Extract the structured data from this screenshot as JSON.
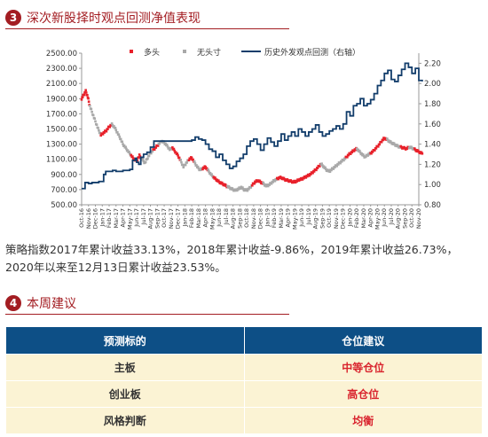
{
  "section3": {
    "number": "3",
    "title": "深次新股择时观点回测净值表现"
  },
  "section4": {
    "number": "4",
    "title": "本周建议"
  },
  "paragraph": "策略指数2017年累计收益33.13%，2018年累计收益-9.86%，2019年累计收益26.73%，2020年以来至12月13日累计收益23.53%。",
  "table": {
    "headers": [
      "预测标的",
      "仓位建议"
    ],
    "rows": [
      {
        "target": "主板",
        "advice": "中等仓位"
      },
      {
        "target": "创业板",
        "advice": "高仓位"
      },
      {
        "target": "风格判断",
        "advice": "均衡"
      }
    ]
  },
  "colors": {
    "long": "#e8202a",
    "no_position": "#a9a9a9",
    "history_line": "#123d6b",
    "accent": "#a31d22",
    "table_header": "#0d4f86",
    "table_row": "#fbf3d4"
  },
  "chart_data": {
    "type": "line",
    "title": "",
    "y_left": {
      "range": [
        500,
        2500
      ],
      "ticks": [
        "500.00",
        "700.00",
        "900.00",
        "1100.00",
        "1300.00",
        "1500.00",
        "1700.00",
        "1900.00",
        "2100.00",
        "2300.00",
        "2500.00"
      ]
    },
    "y_right": {
      "range": [
        0.8,
        2.3
      ],
      "ticks": [
        "0.80",
        "1.00",
        "1.20",
        "1.40",
        "1.60",
        "1.80",
        "2.00",
        "2.20"
      ]
    },
    "x_ticks": [
      "Oct-16",
      "Nov-16",
      "Dec-16",
      "Jan-17",
      "Feb-17",
      "Mar-17",
      "Apr-17",
      "May-17",
      "Jun-17",
      "Jul-17",
      "Aug-17",
      "Sep-17",
      "Oct-17",
      "Nov-17",
      "Dec-17",
      "Jan-18",
      "Feb-18",
      "Mar-18",
      "Apr-18",
      "May-18",
      "Jun-18",
      "Jul-18",
      "Aug-18",
      "Sep-18",
      "Oct-18",
      "Nov-18",
      "Dec-18",
      "Jan-19",
      "Feb-19",
      "Mar-19",
      "Apr-19",
      "May-19",
      "Jun-19",
      "Jul-19",
      "Aug-19",
      "Sep-19",
      "Oct-19",
      "Nov-19",
      "Dec-19",
      "Jan-20",
      "Feb-20",
      "Mar-20",
      "Apr-20",
      "May-20",
      "Jun-20",
      "Jul-20",
      "Aug-20",
      "Sep-20",
      "Oct-20",
      "Nov-20"
    ],
    "legend": [
      "多头",
      "无头寸",
      "历史外发观点回测（右轴）"
    ],
    "legend_placement": "top",
    "index_series": [
      [
        0,
        1900,
        "L"
      ],
      [
        0.3,
        1950,
        "L"
      ],
      [
        0.6,
        2000,
        "L"
      ],
      [
        0.9,
        1920,
        "L"
      ],
      [
        1.2,
        1800,
        "N"
      ],
      [
        1.6,
        1700,
        "N"
      ],
      [
        2.0,
        1600,
        "N"
      ],
      [
        2.4,
        1500,
        "N"
      ],
      [
        2.8,
        1420,
        "L"
      ],
      [
        3.2,
        1450,
        "L"
      ],
      [
        3.6,
        1480,
        "L"
      ],
      [
        4.0,
        1530,
        "L"
      ],
      [
        4.4,
        1560,
        "N"
      ],
      [
        4.8,
        1520,
        "N"
      ],
      [
        5.2,
        1450,
        "N"
      ],
      [
        5.6,
        1380,
        "N"
      ],
      [
        6.0,
        1300,
        "N"
      ],
      [
        6.4,
        1250,
        "N"
      ],
      [
        6.8,
        1200,
        "N"
      ],
      [
        7.2,
        1150,
        "L"
      ],
      [
        7.6,
        1100,
        "L"
      ],
      [
        8.0,
        1080,
        "L"
      ],
      [
        8.4,
        1150,
        "L"
      ],
      [
        8.8,
        1100,
        "N"
      ],
      [
        9.2,
        1050,
        "N"
      ],
      [
        9.6,
        1120,
        "N"
      ],
      [
        10.0,
        1180,
        "N"
      ],
      [
        10.4,
        1220,
        "L"
      ],
      [
        10.8,
        1260,
        "L"
      ],
      [
        11.2,
        1300,
        "N"
      ],
      [
        11.6,
        1340,
        "N"
      ],
      [
        12.0,
        1320,
        "N"
      ],
      [
        12.4,
        1280,
        "N"
      ],
      [
        12.8,
        1230,
        "N"
      ],
      [
        13.2,
        1250,
        "L"
      ],
      [
        13.6,
        1200,
        "L"
      ],
      [
        14.0,
        1150,
        "L"
      ],
      [
        14.4,
        1080,
        "N"
      ],
      [
        14.8,
        1000,
        "N"
      ],
      [
        15.2,
        1050,
        "N"
      ],
      [
        15.6,
        1100,
        "L"
      ],
      [
        16.0,
        1120,
        "L"
      ],
      [
        16.4,
        1060,
        "N"
      ],
      [
        16.8,
        1000,
        "N"
      ],
      [
        17.2,
        960,
        "N"
      ],
      [
        17.6,
        980,
        "L"
      ],
      [
        18.0,
        1000,
        "L"
      ],
      [
        18.4,
        950,
        "N"
      ],
      [
        18.8,
        900,
        "N"
      ],
      [
        19.2,
        860,
        "L"
      ],
      [
        19.6,
        830,
        "L"
      ],
      [
        20.0,
        800,
        "L"
      ],
      [
        20.4,
        780,
        "L"
      ],
      [
        20.8,
        760,
        "L"
      ],
      [
        21.2,
        740,
        "N"
      ],
      [
        21.6,
        720,
        "N"
      ],
      [
        22.0,
        700,
        "N"
      ],
      [
        22.4,
        690,
        "N"
      ],
      [
        22.8,
        710,
        "N"
      ],
      [
        23.2,
        730,
        "N"
      ],
      [
        23.6,
        700,
        "N"
      ],
      [
        24.0,
        690,
        "N"
      ],
      [
        24.4,
        720,
        "N"
      ],
      [
        24.8,
        760,
        "L"
      ],
      [
        25.2,
        800,
        "L"
      ],
      [
        25.6,
        820,
        "L"
      ],
      [
        26.0,
        800,
        "L"
      ],
      [
        26.4,
        780,
        "N"
      ],
      [
        26.8,
        750,
        "N"
      ],
      [
        27.2,
        760,
        "N"
      ],
      [
        27.6,
        790,
        "N"
      ],
      [
        28.0,
        820,
        "N"
      ],
      [
        28.4,
        840,
        "L"
      ],
      [
        28.8,
        860,
        "L"
      ],
      [
        29.2,
        850,
        "L"
      ],
      [
        29.6,
        830,
        "L"
      ],
      [
        30.0,
        820,
        "L"
      ],
      [
        30.4,
        810,
        "L"
      ],
      [
        30.8,
        800,
        "L"
      ],
      [
        31.2,
        810,
        "L"
      ],
      [
        31.6,
        830,
        "L"
      ],
      [
        32.0,
        840,
        "L"
      ],
      [
        32.4,
        860,
        "L"
      ],
      [
        32.8,
        880,
        "L"
      ],
      [
        33.2,
        900,
        "L"
      ],
      [
        33.6,
        930,
        "L"
      ],
      [
        34.0,
        960,
        "L"
      ],
      [
        34.4,
        1000,
        "L"
      ],
      [
        34.8,
        1040,
        "N"
      ],
      [
        35.2,
        1000,
        "N"
      ],
      [
        35.6,
        960,
        "N"
      ],
      [
        36.0,
        940,
        "N"
      ],
      [
        36.4,
        970,
        "N"
      ],
      [
        36.8,
        1000,
        "N"
      ],
      [
        37.2,
        1030,
        "N"
      ],
      [
        37.6,
        1060,
        "N"
      ],
      [
        38.0,
        1090,
        "N"
      ],
      [
        38.4,
        1120,
        "L"
      ],
      [
        38.8,
        1160,
        "L"
      ],
      [
        39.2,
        1190,
        "L"
      ],
      [
        39.6,
        1220,
        "L"
      ],
      [
        40.0,
        1240,
        "N"
      ],
      [
        40.4,
        1200,
        "N"
      ],
      [
        40.8,
        1160,
        "N"
      ],
      [
        41.2,
        1130,
        "N"
      ],
      [
        41.6,
        1160,
        "N"
      ],
      [
        42.0,
        1180,
        "L"
      ],
      [
        42.4,
        1210,
        "L"
      ],
      [
        42.8,
        1250,
        "L"
      ],
      [
        43.2,
        1290,
        "L"
      ],
      [
        43.6,
        1340,
        "L"
      ],
      [
        44.0,
        1380,
        "L"
      ],
      [
        44.4,
        1360,
        "N"
      ],
      [
        44.8,
        1330,
        "N"
      ],
      [
        45.2,
        1310,
        "N"
      ],
      [
        45.6,
        1290,
        "N"
      ],
      [
        46.0,
        1270,
        "N"
      ],
      [
        46.4,
        1260,
        "L"
      ],
      [
        46.8,
        1250,
        "L"
      ],
      [
        47.2,
        1240,
        "L"
      ],
      [
        47.6,
        1260,
        "N"
      ],
      [
        48.0,
        1250,
        "N"
      ],
      [
        48.4,
        1230,
        "L"
      ],
      [
        48.8,
        1210,
        "L"
      ],
      [
        49.2,
        1190,
        "L"
      ],
      [
        49.6,
        1170,
        "L"
      ]
    ],
    "history_line": [
      [
        0,
        0.96
      ],
      [
        0.5,
        1.02
      ],
      [
        1.0,
        1.01
      ],
      [
        1.5,
        1.02
      ],
      [
        2.0,
        1.02
      ],
      [
        2.5,
        1.03
      ],
      [
        3.0,
        1.03
      ],
      [
        3.2,
        1.1
      ],
      [
        3.5,
        1.13
      ],
      [
        4.0,
        1.13
      ],
      [
        4.5,
        1.14
      ],
      [
        5.0,
        1.13
      ],
      [
        5.5,
        1.13
      ],
      [
        6.0,
        1.14
      ],
      [
        6.5,
        1.14
      ],
      [
        7.0,
        1.15
      ],
      [
        7.4,
        1.24
      ],
      [
        7.8,
        1.26
      ],
      [
        8.0,
        1.22
      ],
      [
        8.3,
        1.2
      ],
      [
        8.6,
        1.27
      ],
      [
        9.0,
        1.3
      ],
      [
        9.5,
        1.32
      ],
      [
        10.0,
        1.37
      ],
      [
        10.5,
        1.43
      ],
      [
        11.0,
        1.43
      ],
      [
        12.0,
        1.43
      ],
      [
        13.0,
        1.43
      ],
      [
        14.0,
        1.43
      ],
      [
        15.0,
        1.43
      ],
      [
        16.0,
        1.44
      ],
      [
        16.5,
        1.47
      ],
      [
        17.0,
        1.45
      ],
      [
        17.5,
        1.44
      ],
      [
        18.0,
        1.4
      ],
      [
        18.5,
        1.35
      ],
      [
        19.0,
        1.33
      ],
      [
        19.5,
        1.27
      ],
      [
        20.0,
        1.3
      ],
      [
        20.5,
        1.24
      ],
      [
        21.0,
        1.2
      ],
      [
        21.5,
        1.16
      ],
      [
        22.0,
        1.18
      ],
      [
        22.5,
        1.23
      ],
      [
        23.0,
        1.26
      ],
      [
        23.5,
        1.3
      ],
      [
        24.0,
        1.38
      ],
      [
        24.5,
        1.43
      ],
      [
        25.0,
        1.45
      ],
      [
        25.5,
        1.4
      ],
      [
        26.0,
        1.34
      ],
      [
        26.5,
        1.4
      ],
      [
        27.0,
        1.46
      ],
      [
        27.5,
        1.42
      ],
      [
        28.0,
        1.38
      ],
      [
        28.5,
        1.43
      ],
      [
        29.0,
        1.5
      ],
      [
        29.5,
        1.44
      ],
      [
        30.0,
        1.48
      ],
      [
        30.5,
        1.52
      ],
      [
        31.0,
        1.48
      ],
      [
        31.5,
        1.55
      ],
      [
        32.0,
        1.52
      ],
      [
        32.5,
        1.48
      ],
      [
        33.0,
        1.52
      ],
      [
        33.5,
        1.55
      ],
      [
        34.0,
        1.59
      ],
      [
        34.5,
        1.52
      ],
      [
        35.0,
        1.48
      ],
      [
        35.5,
        1.5
      ],
      [
        36.0,
        1.53
      ],
      [
        36.5,
        1.55
      ],
      [
        37.0,
        1.58
      ],
      [
        37.5,
        1.55
      ],
      [
        38.0,
        1.6
      ],
      [
        38.5,
        1.72
      ],
      [
        39.0,
        1.68
      ],
      [
        39.5,
        1.78
      ],
      [
        40.0,
        1.8
      ],
      [
        40.5,
        1.85
      ],
      [
        41.0,
        1.78
      ],
      [
        41.5,
        1.8
      ],
      [
        42.0,
        1.84
      ],
      [
        42.5,
        1.9
      ],
      [
        43.0,
        1.98
      ],
      [
        43.5,
        2.03
      ],
      [
        44.0,
        2.1
      ],
      [
        44.5,
        2.13
      ],
      [
        45.0,
        2.04
      ],
      [
        45.5,
        2.02
      ],
      [
        46.0,
        2.08
      ],
      [
        46.5,
        2.14
      ],
      [
        47.0,
        2.2
      ],
      [
        47.5,
        2.16
      ],
      [
        48.0,
        2.1
      ],
      [
        48.5,
        2.15
      ],
      [
        49.0,
        2.03
      ],
      [
        49.5,
        2.02
      ]
    ]
  }
}
